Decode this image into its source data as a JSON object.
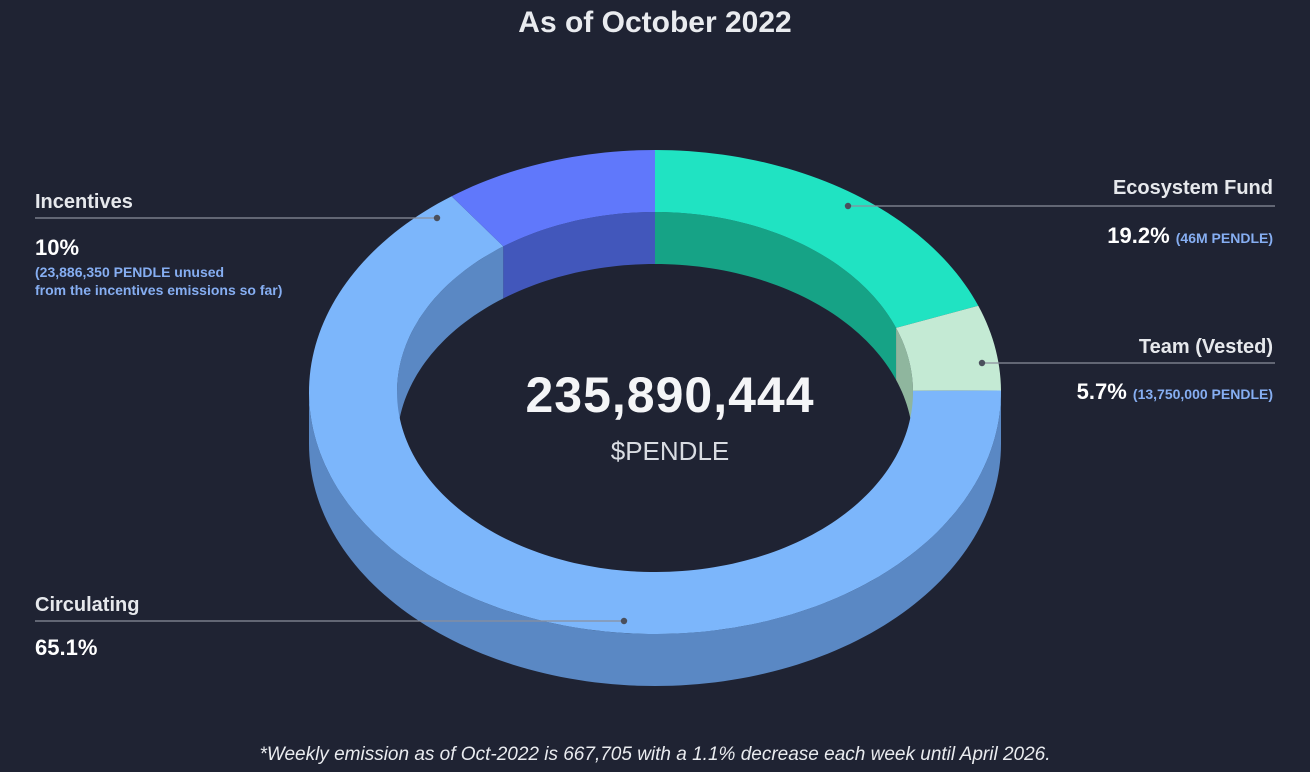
{
  "chart_data": {
    "type": "pie",
    "title": "As of October 2022",
    "center": {
      "value": "235,890,444",
      "unit": "$PENDLE"
    },
    "slices": [
      {
        "name": "Ecosystem Fund",
        "value": 19.2,
        "pct_label": "19.2%",
        "note": "(46M PENDLE)",
        "color": "#20e3c2",
        "inner_color": "#16a386",
        "side_color": "#17a98c"
      },
      {
        "name": "Team (Vested)",
        "value": 5.7,
        "pct_label": "5.7%",
        "note": "(13,750,000 PENDLE)",
        "color": "#c4ead4",
        "inner_color": "#8fb69e",
        "side_color": "#93bba3"
      },
      {
        "name": "Circulating",
        "value": 65.1,
        "pct_label": "65.1%",
        "note": "",
        "color": "#7cb6fb",
        "inner_color": "#5a88c4",
        "side_color": "#5a88c4"
      },
      {
        "name": "Incentives",
        "value": 10,
        "pct_label": "10%",
        "note": "(23,886,350 PENDLE unused\nfrom the incentives emissions so far)",
        "color": "#6078fb",
        "inner_color": "#4257bb",
        "side_color": "#4257bb"
      }
    ],
    "footnote": "*Weekly emission as of Oct-2022 is 667,705 with a 1.1% decrease each week until April 2026."
  }
}
